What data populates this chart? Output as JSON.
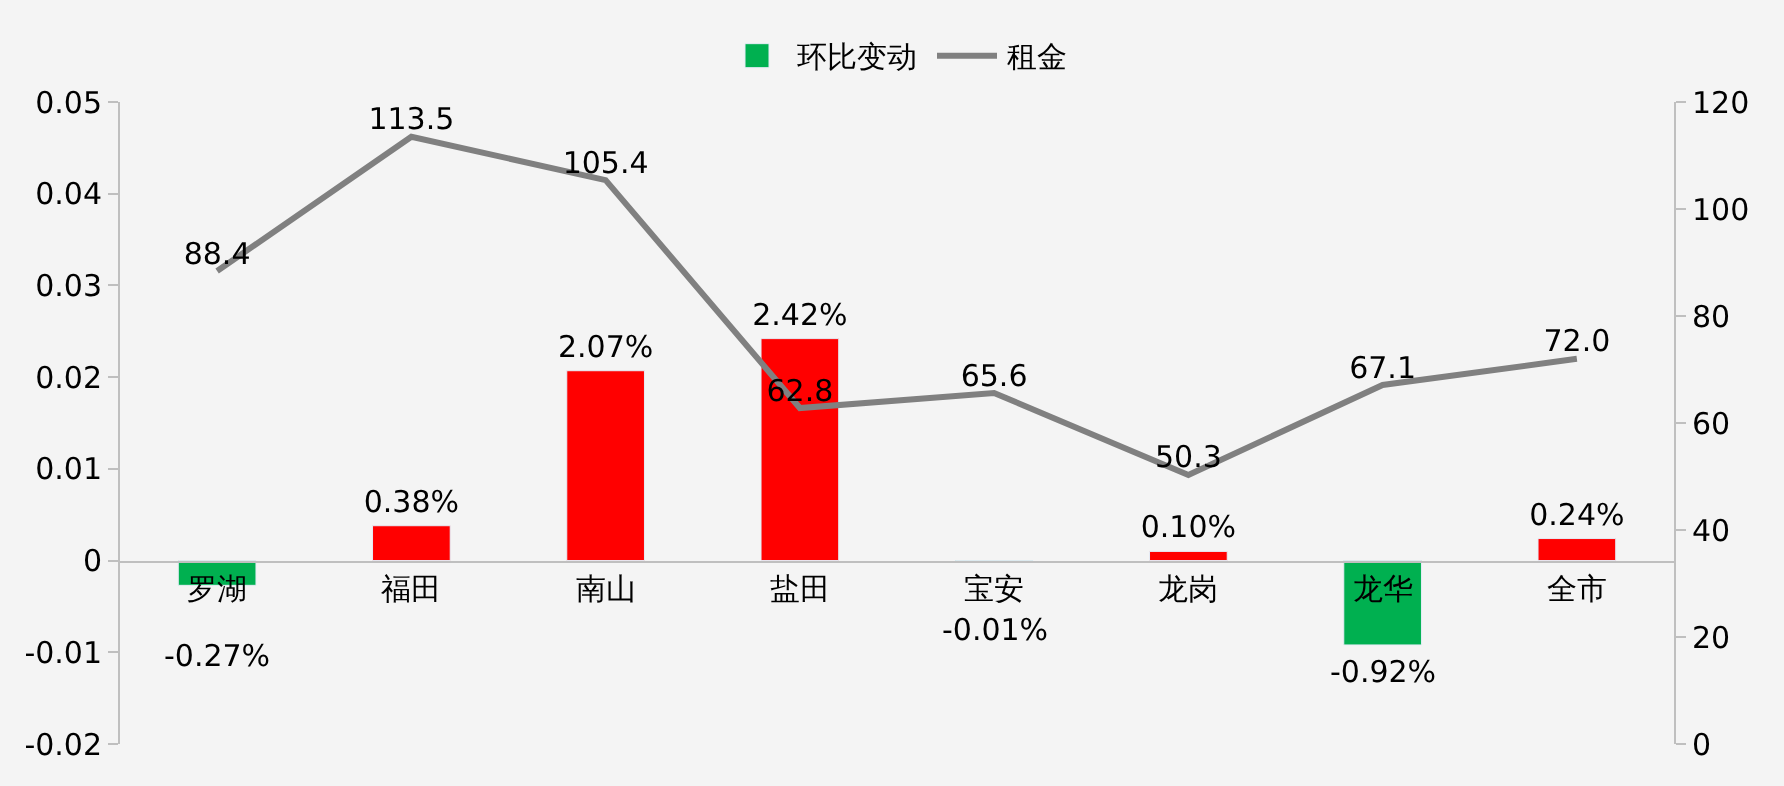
{
  "chart_data": {
    "type": "bar",
    "categories": [
      "罗湖",
      "福田",
      "南山",
      "盐田",
      "宝安",
      "龙岗",
      "龙华",
      "全市"
    ],
    "series": [
      {
        "name": "环比变动",
        "color": "#00b050",
        "colors": [
          "#00b050",
          "#ff0000",
          "#ff0000",
          "#ff0000",
          "#00b050",
          "#ff0000",
          "#00b050",
          "#ff0000"
        ],
        "values": [
          -0.0027,
          0.0038,
          0.0207,
          0.0242,
          -0.0001,
          0.001,
          -0.0092,
          0.0024
        ],
        "value_labels": [
          "-0.27%",
          "0.38%",
          "2.07%",
          "2.42%",
          "-0.01%",
          "0.10%",
          "-0.92%",
          "0.24%"
        ]
      },
      {
        "name": "租金",
        "type": "line",
        "axis": "y2",
        "color": "#808080",
        "marker": "none",
        "line_style": "solid",
        "values": [
          88.4,
          113.5,
          105.4,
          62.8,
          65.6,
          50.3,
          67.1,
          72.0
        ],
        "value_labels": [
          "88.4",
          "113.5",
          "105.4",
          "62.8",
          "65.6",
          "50.3",
          "67.1",
          "72.0"
        ]
      }
    ],
    "ylim": [
      -0.02,
      0.05
    ],
    "yticks": [
      -0.02,
      -0.01,
      0,
      0.01,
      0.02,
      0.03,
      0.04,
      0.05
    ],
    "y2lim": [
      0,
      120
    ],
    "y2ticks": [
      0,
      20,
      40,
      60,
      80,
      100,
      120
    ],
    "grid": false,
    "legend": "top"
  }
}
